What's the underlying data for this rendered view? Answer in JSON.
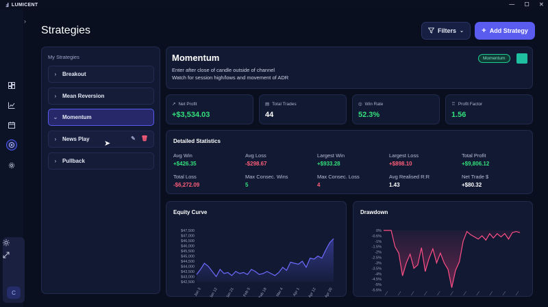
{
  "app": {
    "name": "LUMICENT",
    "logo": "Ⅎ"
  },
  "window_controls": {
    "minimize": "—",
    "maximize": "☐",
    "close": "✕"
  },
  "colors": {
    "accent": "#5a5cf0",
    "positive": "#34e07c",
    "negative": "#ff5d79",
    "strategy_color": "#1fbfa1"
  },
  "rail": {
    "icons": [
      "dashboard-icon",
      "chart-icon",
      "calendar-icon",
      "strategies-icon",
      "settings-icon"
    ],
    "bottom_icons": [
      "theme-icon",
      "fullscreen-icon"
    ],
    "avatar": "C"
  },
  "header": {
    "title": "Strategies",
    "filters_label": "Filters",
    "add_label": "Add Strategy"
  },
  "strategies": {
    "heading": "My Strategies",
    "items": [
      {
        "label": "Breakout"
      },
      {
        "label": "Mean Reversion"
      },
      {
        "label": "Momentum"
      },
      {
        "label": "News Play"
      },
      {
        "label": "Pullback"
      }
    ],
    "selected": "Momentum"
  },
  "detail": {
    "name": "Momentum",
    "description_lines": [
      "Enter after close of candle outside of channel",
      "Watch for session high/lows and movement of ADR"
    ],
    "badge": "Momentum"
  },
  "summary": [
    {
      "label": "Net Profit",
      "value": "+$3,534.03",
      "icon": "trend-icon"
    },
    {
      "label": "Total Trades",
      "value": "44",
      "icon": "document-icon"
    },
    {
      "label": "Win Rate",
      "value": "52.3%",
      "icon": "target-icon"
    },
    {
      "label": "Profit Factor",
      "value": "1.56",
      "icon": "trophy-icon"
    }
  ],
  "detailed_stats": {
    "heading": "Detailed Statistics",
    "rows": [
      [
        {
          "label": "Avg Win",
          "value": "+$426.35"
        },
        {
          "label": "Avg Loss",
          "value": "-$298.67"
        },
        {
          "label": "Largest Win",
          "value": "+$933.28"
        },
        {
          "label": "Largest Loss",
          "value": "+$898.10"
        },
        {
          "label": "Total Profit",
          "value": "+$9,806.12"
        }
      ],
      [
        {
          "label": "Total Loss",
          "value": "-$6,272.09"
        },
        {
          "label": "Max Consec. Wins",
          "value": "5"
        },
        {
          "label": "Max Consec. Loss",
          "value": "4"
        },
        {
          "label": "Avg Realised R:R",
          "value": "1.43"
        },
        {
          "label": "Net Trade $",
          "value": "+$80.32"
        }
      ]
    ]
  },
  "chart_data": [
    {
      "type": "area",
      "title": "Equity Curve",
      "xlabel": "",
      "ylabel": "",
      "x_ticks": [
        "Jan 3",
        "Jan 12",
        "Jan 21",
        "Feb 5",
        "Feb 18",
        "Mar 4",
        "Apr 1",
        "Apr 12",
        "Apr 20"
      ],
      "y_ticks": [
        "$47,500",
        "$47,000",
        "$46,500",
        "$46,000",
        "$45,500",
        "$45,000",
        "$44,500",
        "$44,000",
        "$43,500",
        "$43,000",
        "$42,500"
      ],
      "ylim": [
        42500,
        47500
      ],
      "values": [
        43200,
        43700,
        44300,
        44000,
        43500,
        43000,
        43700,
        43300,
        43400,
        43100,
        43500,
        43300,
        43400,
        43200,
        43700,
        43500,
        43200,
        43300,
        43500,
        43300,
        43100,
        43400,
        43900,
        43600,
        44400,
        44300,
        44200,
        44500,
        43900,
        44800,
        44700,
        45000,
        44800,
        45600,
        46300,
        46700
      ]
    },
    {
      "type": "area",
      "title": "Drawdown",
      "xlabel": "",
      "ylabel": "",
      "y_ticks": [
        "0%",
        "-0.5%",
        "-1%",
        "-1.5%",
        "-2%",
        "-2.5%",
        "-3%",
        "-3.5%",
        "-4%",
        "-4.5%",
        "-5%",
        "-5.5%"
      ],
      "ylim": [
        -5.5,
        0
      ],
      "values": [
        0,
        0,
        0,
        -1.5,
        -2.1,
        -4.2,
        -3.0,
        -2.2,
        -3.5,
        -3.2,
        -1.6,
        -3.8,
        -2.6,
        -1.7,
        -3.0,
        -2.1,
        -3.0,
        -3.6,
        -5.3,
        -3.7,
        -2.9,
        -1.0,
        -0.1,
        -0.4,
        -0.6,
        -0.8,
        -0.5,
        -0.9,
        -0.3,
        -0.7,
        -0.3,
        -0.6,
        -0.3,
        -0.8,
        -0.2,
        -0.1,
        -0.2
      ]
    }
  ]
}
